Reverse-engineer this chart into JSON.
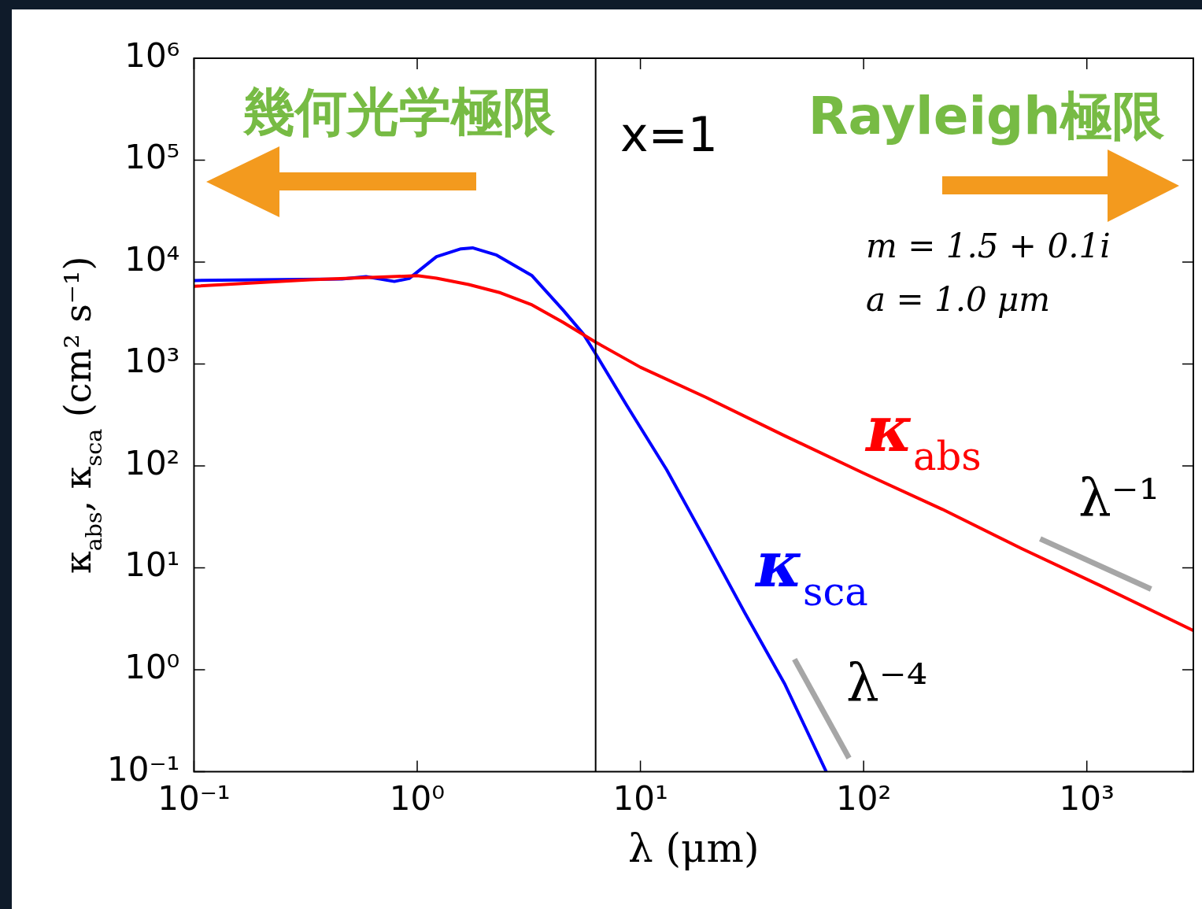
{
  "chart_data": {
    "type": "line",
    "log": "xy",
    "xlabel": "λ (μm)",
    "ylabel": "κ$_{abs}$, κ$_{sca}$ (cm² s⁻¹)",
    "xlim": [
      0.1,
      3000
    ],
    "ylim": [
      0.1,
      1000000
    ],
    "xticks": [
      {
        "value": 0.1,
        "label": "10⁻¹"
      },
      {
        "value": 1,
        "label": "10⁰"
      },
      {
        "value": 10,
        "label": "10¹"
      },
      {
        "value": 100,
        "label": "10²"
      },
      {
        "value": 1000,
        "label": "10³"
      }
    ],
    "yticks": [
      {
        "value": 0.1,
        "label": "10⁻¹"
      },
      {
        "value": 1,
        "label": "10⁰"
      },
      {
        "value": 10,
        "label": "10¹"
      },
      {
        "value": 100,
        "label": "10²"
      },
      {
        "value": 1000,
        "label": "10³"
      },
      {
        "value": 10000,
        "label": "10⁴"
      },
      {
        "value": 100000,
        "label": "10⁵"
      },
      {
        "value": 1000000,
        "label": "10⁶"
      }
    ],
    "series": [
      {
        "name": "κ$_{abs}$",
        "color": "#ff0000",
        "x": [
          0.1,
          0.33,
          1,
          1.22,
          1.7,
          2.36,
          3.27,
          4.5,
          6.3,
          10,
          19.7,
          44.4,
          100,
          225,
          510,
          1150,
          3000
        ],
        "values": [
          5800,
          6700,
          7350,
          6950,
          6030,
          5000,
          3800,
          2570,
          1640,
          930,
          470,
          197,
          85,
          37.6,
          15.5,
          6.7,
          2.43
        ]
      },
      {
        "name": "κ$_{sca}$",
        "color": "#0000ff",
        "x": [
          0.1,
          0.46,
          0.59,
          0.79,
          0.92,
          1.22,
          1.57,
          1.77,
          2.27,
          3.27,
          4.5,
          5.55,
          6.3,
          8.7,
          13.1,
          19.7,
          29.4,
          44.4,
          68
        ],
        "values": [
          6600,
          6830,
          7200,
          6460,
          6900,
          11300,
          13500,
          13800,
          11700,
          7350,
          3390,
          1970,
          1260,
          390,
          92,
          18.2,
          3.6,
          0.72,
          0.1
        ]
      },
      {
        "color": "#a6a6a6",
        "x": [
          618,
          1940
        ],
        "values": [
          19.3,
          6.2
        ]
      },
      {
        "color": "#a6a6a6",
        "x": [
          49,
          86
        ],
        "values": [
          1.27,
          0.136
        ]
      }
    ],
    "ref_lines": [
      {
        "axis": "x",
        "value": 6.3,
        "color": "#000000"
      }
    ],
    "annotations": [
      "幾何光学極限",
      "Rayleigh極限",
      "x=1",
      "m = 1.5 + 0.1i",
      "a = 1.0 μm",
      "λ⁻¹",
      "λ⁻⁴"
    ]
  }
}
